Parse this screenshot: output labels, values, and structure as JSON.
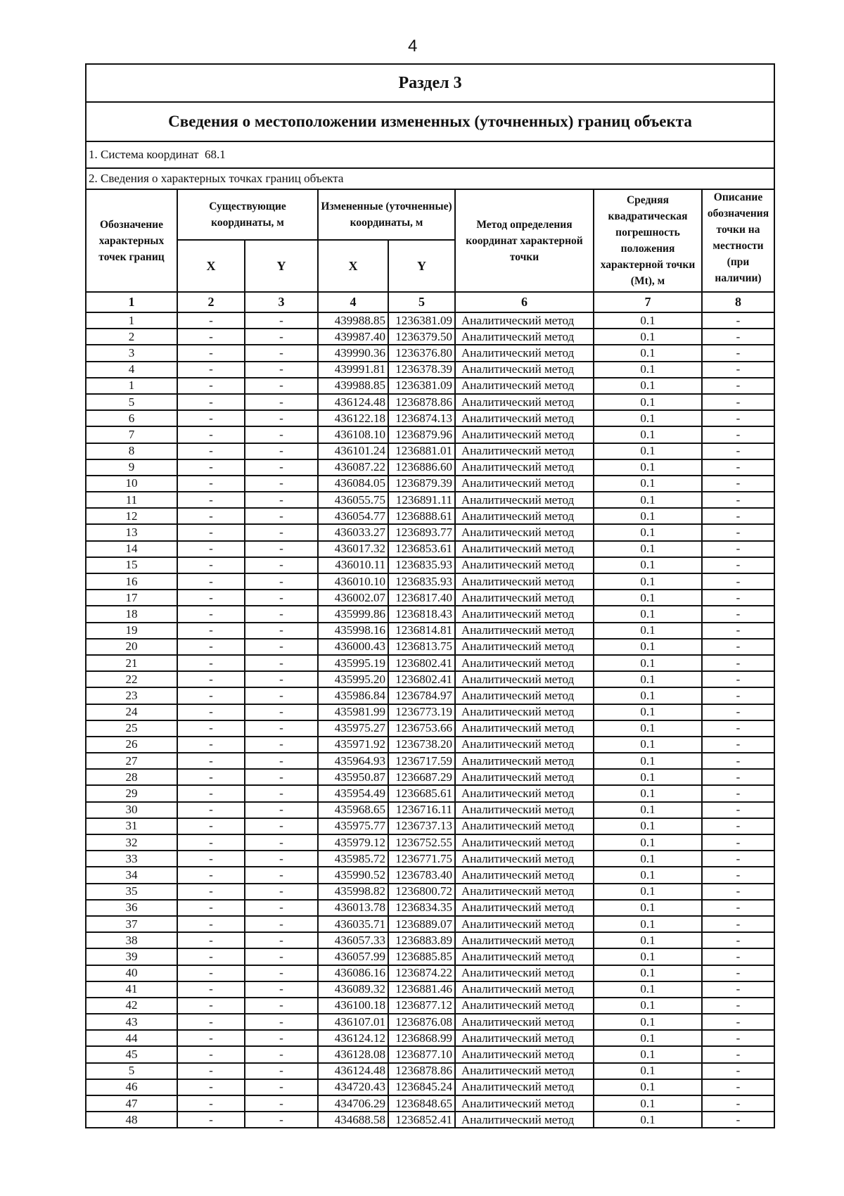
{
  "page_number": "4",
  "section_title": "Раздел 3",
  "table_title": "Сведения о местоположении измененных (уточненных) границ объекта",
  "coord_system": {
    "label": "1. Система координат",
    "value": "68.1"
  },
  "points_section_label": "2. Сведения о характерных точках границ объекта",
  "headers": {
    "designation": "Обозначение характерных точек границ",
    "existing": "Существующие координаты, м",
    "changed": "Измененные (уточненные) координаты, м",
    "x": "X",
    "y": "Y",
    "method": "Метод определения координат характерной точки",
    "mt": "Средняя квадратическая погрешность положения характерной точки (Mt), м",
    "description": "Описание обозначения точки на местности (при наличии)"
  },
  "column_numbers": [
    "1",
    "2",
    "3",
    "4",
    "5",
    "6",
    "7",
    "8"
  ],
  "rows": [
    [
      "1",
      "-",
      "-",
      "439988.85",
      "1236381.09",
      "Аналитический метод",
      "0.1",
      "-"
    ],
    [
      "2",
      "-",
      "-",
      "439987.40",
      "1236379.50",
      "Аналитический метод",
      "0.1",
      "-"
    ],
    [
      "3",
      "-",
      "-",
      "439990.36",
      "1236376.80",
      "Аналитический метод",
      "0.1",
      "-"
    ],
    [
      "4",
      "-",
      "-",
      "439991.81",
      "1236378.39",
      "Аналитический метод",
      "0.1",
      "-"
    ],
    [
      "1",
      "-",
      "-",
      "439988.85",
      "1236381.09",
      "Аналитический метод",
      "0.1",
      "-"
    ],
    [
      "5",
      "-",
      "-",
      "436124.48",
      "1236878.86",
      "Аналитический метод",
      "0.1",
      "-"
    ],
    [
      "6",
      "-",
      "-",
      "436122.18",
      "1236874.13",
      "Аналитический метод",
      "0.1",
      "-"
    ],
    [
      "7",
      "-",
      "-",
      "436108.10",
      "1236879.96",
      "Аналитический метод",
      "0.1",
      "-"
    ],
    [
      "8",
      "-",
      "-",
      "436101.24",
      "1236881.01",
      "Аналитический метод",
      "0.1",
      "-"
    ],
    [
      "9",
      "-",
      "-",
      "436087.22",
      "1236886.60",
      "Аналитический метод",
      "0.1",
      "-"
    ],
    [
      "10",
      "-",
      "-",
      "436084.05",
      "1236879.39",
      "Аналитический метод",
      "0.1",
      "-"
    ],
    [
      "11",
      "-",
      "-",
      "436055.75",
      "1236891.11",
      "Аналитический метод",
      "0.1",
      "-"
    ],
    [
      "12",
      "-",
      "-",
      "436054.77",
      "1236888.61",
      "Аналитический метод",
      "0.1",
      "-"
    ],
    [
      "13",
      "-",
      "-",
      "436033.27",
      "1236893.77",
      "Аналитический метод",
      "0.1",
      "-"
    ],
    [
      "14",
      "-",
      "-",
      "436017.32",
      "1236853.61",
      "Аналитический метод",
      "0.1",
      "-"
    ],
    [
      "15",
      "-",
      "-",
      "436010.11",
      "1236835.93",
      "Аналитический метод",
      "0.1",
      "-"
    ],
    [
      "16",
      "-",
      "-",
      "436010.10",
      "1236835.93",
      "Аналитический метод",
      "0.1",
      "-"
    ],
    [
      "17",
      "-",
      "-",
      "436002.07",
      "1236817.40",
      "Аналитический метод",
      "0.1",
      "-"
    ],
    [
      "18",
      "-",
      "-",
      "435999.86",
      "1236818.43",
      "Аналитический метод",
      "0.1",
      "-"
    ],
    [
      "19",
      "-",
      "-",
      "435998.16",
      "1236814.81",
      "Аналитический метод",
      "0.1",
      "-"
    ],
    [
      "20",
      "-",
      "-",
      "436000.43",
      "1236813.75",
      "Аналитический метод",
      "0.1",
      "-"
    ],
    [
      "21",
      "-",
      "-",
      "435995.19",
      "1236802.41",
      "Аналитический метод",
      "0.1",
      "-"
    ],
    [
      "22",
      "-",
      "-",
      "435995.20",
      "1236802.41",
      "Аналитический метод",
      "0.1",
      "-"
    ],
    [
      "23",
      "-",
      "-",
      "435986.84",
      "1236784.97",
      "Аналитический метод",
      "0.1",
      "-"
    ],
    [
      "24",
      "-",
      "-",
      "435981.99",
      "1236773.19",
      "Аналитический метод",
      "0.1",
      "-"
    ],
    [
      "25",
      "-",
      "-",
      "435975.27",
      "1236753.66",
      "Аналитический метод",
      "0.1",
      "-"
    ],
    [
      "26",
      "-",
      "-",
      "435971.92",
      "1236738.20",
      "Аналитический метод",
      "0.1",
      "-"
    ],
    [
      "27",
      "-",
      "-",
      "435964.93",
      "1236717.59",
      "Аналитический метод",
      "0.1",
      "-"
    ],
    [
      "28",
      "-",
      "-",
      "435950.87",
      "1236687.29",
      "Аналитический метод",
      "0.1",
      "-"
    ],
    [
      "29",
      "-",
      "-",
      "435954.49",
      "1236685.61",
      "Аналитический метод",
      "0.1",
      "-"
    ],
    [
      "30",
      "-",
      "-",
      "435968.65",
      "1236716.11",
      "Аналитический метод",
      "0.1",
      "-"
    ],
    [
      "31",
      "-",
      "-",
      "435975.77",
      "1236737.13",
      "Аналитический метод",
      "0.1",
      "-"
    ],
    [
      "32",
      "-",
      "-",
      "435979.12",
      "1236752.55",
      "Аналитический метод",
      "0.1",
      "-"
    ],
    [
      "33",
      "-",
      "-",
      "435985.72",
      "1236771.75",
      "Аналитический метод",
      "0.1",
      "-"
    ],
    [
      "34",
      "-",
      "-",
      "435990.52",
      "1236783.40",
      "Аналитический метод",
      "0.1",
      "-"
    ],
    [
      "35",
      "-",
      "-",
      "435998.82",
      "1236800.72",
      "Аналитический метод",
      "0.1",
      "-"
    ],
    [
      "36",
      "-",
      "-",
      "436013.78",
      "1236834.35",
      "Аналитический метод",
      "0.1",
      "-"
    ],
    [
      "37",
      "-",
      "-",
      "436035.71",
      "1236889.07",
      "Аналитический метод",
      "0.1",
      "-"
    ],
    [
      "38",
      "-",
      "-",
      "436057.33",
      "1236883.89",
      "Аналитический метод",
      "0.1",
      "-"
    ],
    [
      "39",
      "-",
      "-",
      "436057.99",
      "1236885.85",
      "Аналитический метод",
      "0.1",
      "-"
    ],
    [
      "40",
      "-",
      "-",
      "436086.16",
      "1236874.22",
      "Аналитический метод",
      "0.1",
      "-"
    ],
    [
      "41",
      "-",
      "-",
      "436089.32",
      "1236881.46",
      "Аналитический метод",
      "0.1",
      "-"
    ],
    [
      "42",
      "-",
      "-",
      "436100.18",
      "1236877.12",
      "Аналитический метод",
      "0.1",
      "-"
    ],
    [
      "43",
      "-",
      "-",
      "436107.01",
      "1236876.08",
      "Аналитический метод",
      "0.1",
      "-"
    ],
    [
      "44",
      "-",
      "-",
      "436124.12",
      "1236868.99",
      "Аналитический метод",
      "0.1",
      "-"
    ],
    [
      "45",
      "-",
      "-",
      "436128.08",
      "1236877.10",
      "Аналитический метод",
      "0.1",
      "-"
    ],
    [
      "5",
      "-",
      "-",
      "436124.48",
      "1236878.86",
      "Аналитический метод",
      "0.1",
      "-"
    ],
    [
      "46",
      "-",
      "-",
      "434720.43",
      "1236845.24",
      "Аналитический метод",
      "0.1",
      "-"
    ],
    [
      "47",
      "-",
      "-",
      "434706.29",
      "1236848.65",
      "Аналитический метод",
      "0.1",
      "-"
    ],
    [
      "48",
      "-",
      "-",
      "434688.58",
      "1236852.41",
      "Аналитический метод",
      "0.1",
      "-"
    ]
  ]
}
